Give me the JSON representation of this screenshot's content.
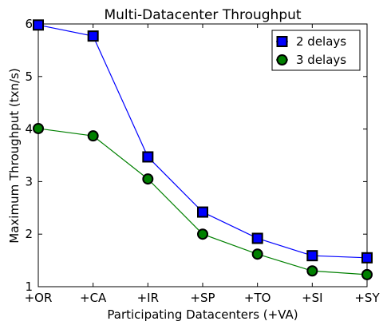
{
  "chart_data": {
    "type": "line",
    "title": "Multi-Datacenter Throughput",
    "xlabel": "Participating Datacenters (+VA)",
    "ylabel": "Maximum Throughput (txn/s)",
    "categories": [
      "+OR",
      "+CA",
      "+IR",
      "+SP",
      "+TO",
      "+SI",
      "+SY"
    ],
    "ylim": [
      1,
      6
    ],
    "yticks": [
      "1",
      "2",
      "3",
      "4",
      "5",
      "6"
    ],
    "grid": false,
    "legend_position": "top-right",
    "series": [
      {
        "name": "2 delays",
        "marker": "square",
        "color": "#0000ff",
        "values": [
          5.98,
          5.77,
          3.47,
          2.42,
          1.92,
          1.59,
          1.55
        ]
      },
      {
        "name": "3 delays",
        "marker": "circle",
        "color": "#008000",
        "values": [
          4.01,
          3.87,
          3.05,
          2.0,
          1.62,
          1.3,
          1.23
        ]
      }
    ]
  }
}
